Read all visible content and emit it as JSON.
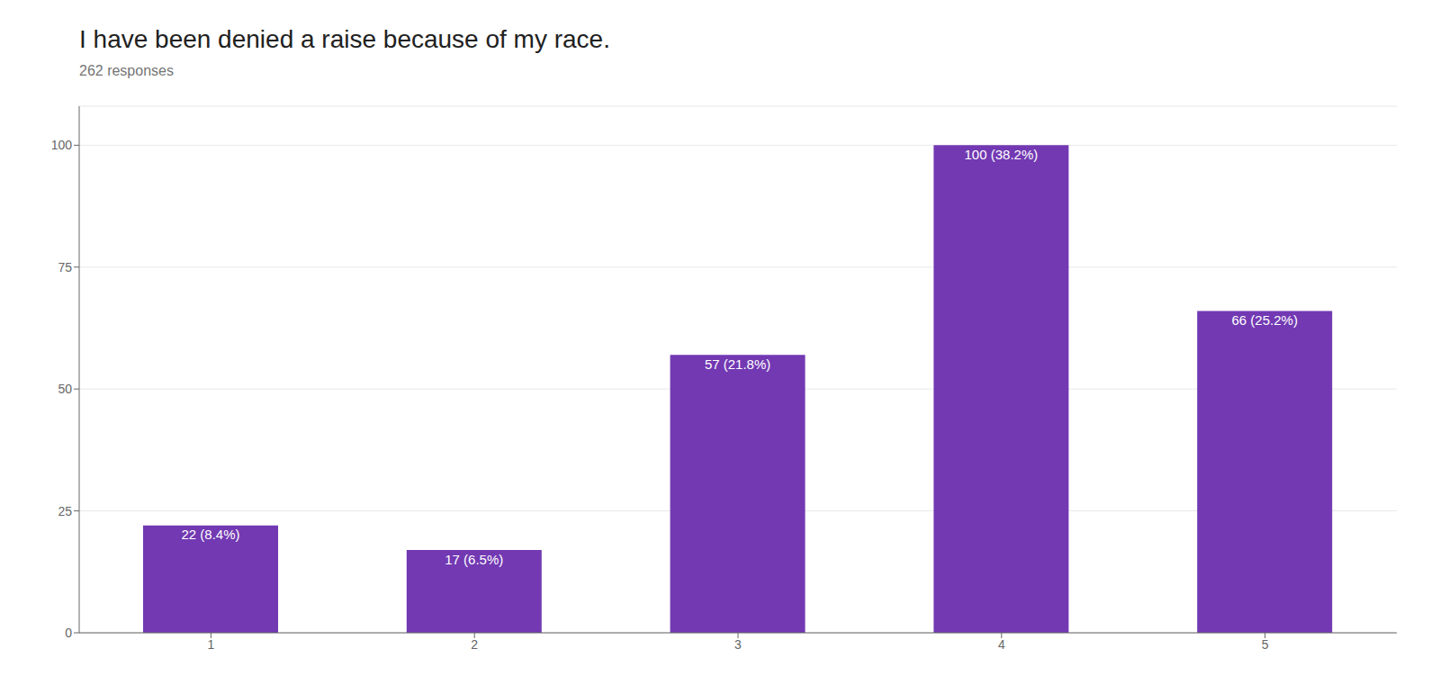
{
  "chart_data": {
    "type": "bar",
    "title": "I have been denied a raise because of my race.",
    "subtitle": "262 responses",
    "categories": [
      1,
      2,
      3,
      4,
      5
    ],
    "values": [
      22,
      17,
      57,
      100,
      66
    ],
    "value_labels": [
      "22 (8.4%)",
      "17 (6.5%)",
      "57 (21.8%)",
      "100 (38.2%)",
      "66 (25.2%)"
    ],
    "data_labels": true,
    "color": "#7239b3",
    "ylim": [
      0,
      108
    ],
    "yticks": [
      0,
      25,
      50,
      75,
      100
    ],
    "grid": true
  }
}
